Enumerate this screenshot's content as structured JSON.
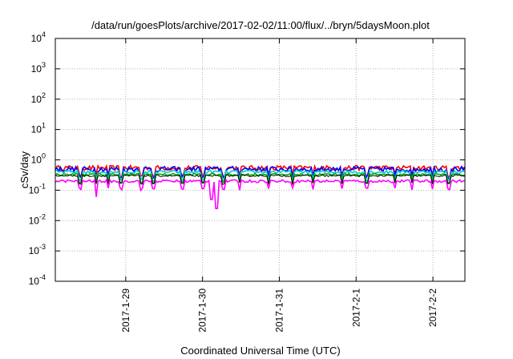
{
  "chart_data": {
    "type": "line",
    "title": "/data/run/goesPlots/archive/2017-02-02/11:00/flux/../bryn/5daysMoon.plot",
    "xlabel": "Coordinated Universal Time (UTC)",
    "ylabel": "cSv/day",
    "x_range": [
      "2017-01-28T02:00",
      "2017-02-02T10:00"
    ],
    "ylim": [
      0.0001,
      10000
    ],
    "yscale": "log",
    "grid": true,
    "y_tick_labels": [
      {
        "base": "10",
        "exp": "-4",
        "value": 0.0001
      },
      {
        "base": "10",
        "exp": "-3",
        "value": 0.001
      },
      {
        "base": "10",
        "exp": "-2",
        "value": 0.01
      },
      {
        "base": "10",
        "exp": "-1",
        "value": 0.1
      },
      {
        "base": "10",
        "exp": "0",
        "value": 1
      },
      {
        "base": "10",
        "exp": "1",
        "value": 10
      },
      {
        "base": "10",
        "exp": "2",
        "value": 100
      },
      {
        "base": "10",
        "exp": "3",
        "value": 1000
      },
      {
        "base": "10",
        "exp": "4",
        "value": 10000
      }
    ],
    "x_tick_labels": [
      {
        "label": "2017-1-29",
        "date": "2017-01-29"
      },
      {
        "label": "2017-1-30",
        "date": "2017-01-30"
      },
      {
        "label": "2017-1-31",
        "date": "2017-01-31"
      },
      {
        "label": "2017-2-1",
        "date": "2017-02-01"
      },
      {
        "label": "2017-2-2",
        "date": "2017-02-02"
      }
    ],
    "series": [
      {
        "color": "#ff0000",
        "level": 0.55,
        "spread": 0.18
      },
      {
        "color": "#0000ff",
        "level": 0.5,
        "spread": 0.2
      },
      {
        "color": "#00cccc",
        "level": 0.4,
        "spread": 0.12
      },
      {
        "color": "#00aa00",
        "level": 0.33,
        "spread": 0.08
      },
      {
        "color": "#000000",
        "level": 0.3,
        "spread": 0.07
      },
      {
        "color": "#ff00ff",
        "level": 0.2,
        "spread": 0.1
      }
    ]
  }
}
